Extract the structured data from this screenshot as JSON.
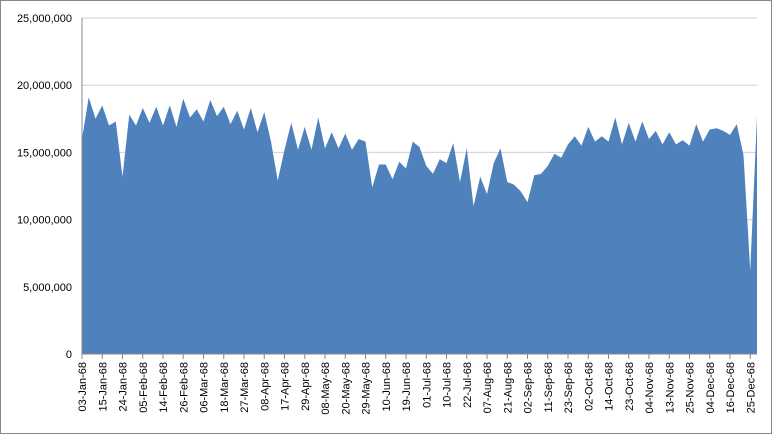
{
  "chart_data": {
    "type": "area",
    "color": "#4f81bd",
    "grid": true,
    "ylim": [
      0,
      25000000
    ],
    "yticks": [
      0,
      {
        "value": 5000000,
        "label": "5,000,000"
      },
      {
        "value": 10000000,
        "label": "10,000,000"
      },
      {
        "value": 15000000,
        "label": "15,000,000"
      },
      {
        "value": 20000000,
        "label": "20,000,000"
      },
      {
        "value": 25000000,
        "label": "25,000,000"
      }
    ],
    "categories": [
      "03-Jan-68",
      null,
      null,
      "15-Jan-68",
      null,
      null,
      "24-Jan-68",
      null,
      null,
      "05-Feb-68",
      null,
      null,
      "14-Feb-68",
      null,
      null,
      "26-Feb-68",
      null,
      null,
      "06-Mar-68",
      null,
      null,
      "18-Mar-68",
      null,
      null,
      "27-Mar-68",
      null,
      null,
      "08-Apr-68",
      null,
      null,
      "17-Apr-68",
      null,
      null,
      "29-Apr-68",
      null,
      null,
      "08-May-68",
      null,
      null,
      "20-May-68",
      null,
      null,
      "29-May-68",
      null,
      null,
      "10-Jun-68",
      null,
      null,
      "19-Jun-68",
      null,
      null,
      "01-Jul-68",
      null,
      null,
      "10-Jul-68",
      null,
      null,
      "22-Jul-68",
      null,
      null,
      "07-Aug-68",
      null,
      null,
      "21-Aug-68",
      null,
      null,
      "02-Sep-68",
      null,
      null,
      "11-Sep-68",
      null,
      null,
      "23-Sep-68",
      null,
      null,
      "02-Oct-68",
      null,
      null,
      "14-Oct-68",
      null,
      null,
      "23-Oct-68",
      null,
      null,
      "04-Nov-68",
      null,
      null,
      "13-Nov-68",
      null,
      null,
      "25-Nov-68",
      null,
      null,
      "04-Dec-68",
      null,
      null,
      "16-Dec-68",
      null,
      null,
      "25-Dec-68",
      null
    ],
    "values": [
      16000000,
      19100000,
      17500000,
      18500000,
      17000000,
      17300000,
      13200000,
      17800000,
      17000000,
      18300000,
      17200000,
      18400000,
      17000000,
      18500000,
      16900000,
      19000000,
      17600000,
      18200000,
      17300000,
      18900000,
      17700000,
      18400000,
      17100000,
      18100000,
      16700000,
      18300000,
      16500000,
      18000000,
      15800000,
      12900000,
      15200000,
      17200000,
      15200000,
      16900000,
      15200000,
      17600000,
      15300000,
      16500000,
      15300000,
      16400000,
      15200000,
      16000000,
      15800000,
      12400000,
      14100000,
      14100000,
      13000000,
      14300000,
      13800000,
      15800000,
      15400000,
      14000000,
      13400000,
      14500000,
      14200000,
      15700000,
      12800000,
      15300000,
      11000000,
      13200000,
      11900000,
      14200000,
      15300000,
      12800000,
      12600000,
      12100000,
      11300000,
      13300000,
      13400000,
      14000000,
      14900000,
      14600000,
      15600000,
      16200000,
      15500000,
      16900000,
      15800000,
      16200000,
      15800000,
      17600000,
      15600000,
      17200000,
      15800000,
      17300000,
      16000000,
      16600000,
      15600000,
      16500000,
      15600000,
      15900000,
      15500000,
      17100000,
      15800000,
      16700000,
      16800000,
      16600000,
      16300000,
      17100000,
      14800000,
      6200000,
      17700000
    ]
  }
}
